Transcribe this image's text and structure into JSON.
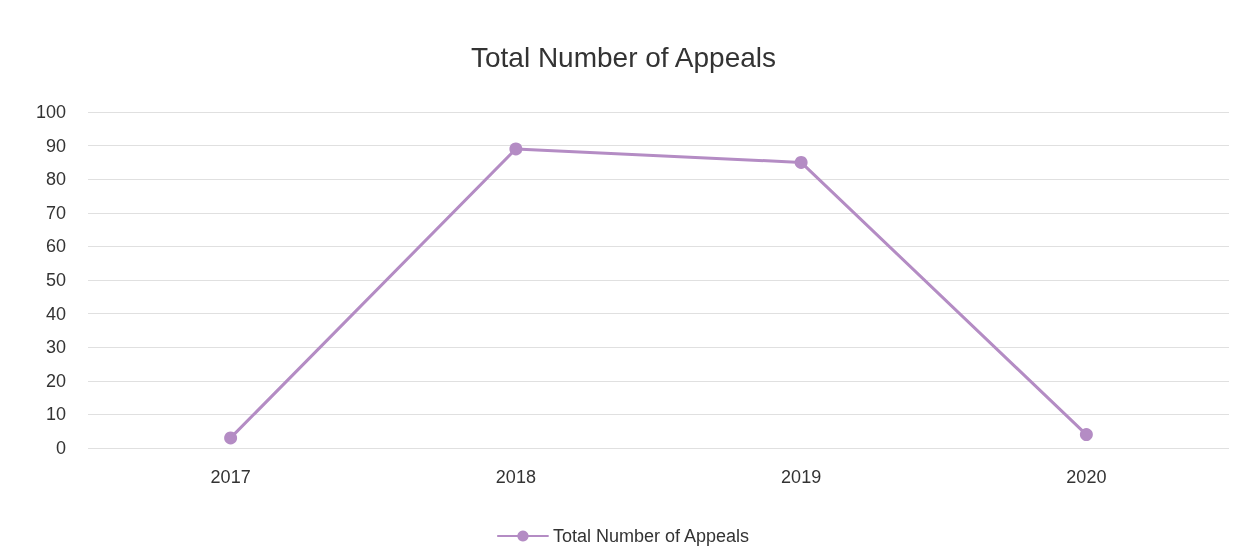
{
  "chart_data": {
    "type": "line",
    "title": "Total Number of Appeals",
    "categories": [
      "2017",
      "2018",
      "2019",
      "2020"
    ],
    "series": [
      {
        "name": "Total Number of Appeals",
        "color": "#b48cc4",
        "values": [
          3,
          89,
          85,
          4
        ]
      }
    ],
    "ylim": [
      0,
      100
    ],
    "yticks": [
      0,
      10,
      20,
      30,
      40,
      50,
      60,
      70,
      80,
      90,
      100
    ],
    "grid": "y",
    "legend": "bottom",
    "marker": "circle"
  }
}
